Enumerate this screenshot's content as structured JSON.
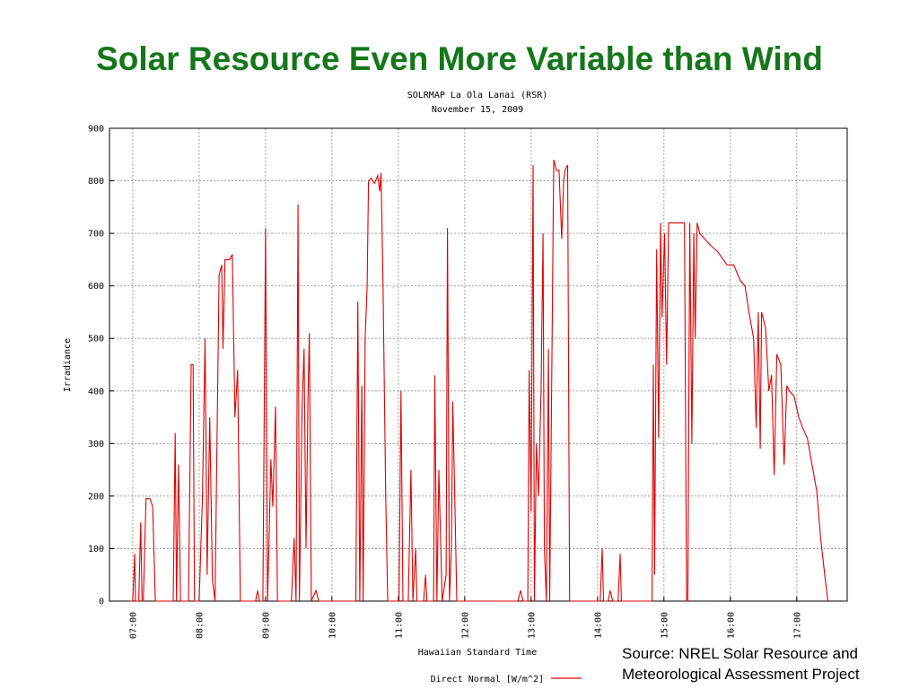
{
  "slide": {
    "title": "Solar Resource Even More Variable than Wind",
    "source": [
      "Source: NREL Solar Resource and",
      "Meteorological Assessment Project"
    ]
  },
  "chart_data": {
    "type": "line",
    "title": "SOLRMAP La Ola Lanai (RSR)",
    "subtitle": "November 15, 2009",
    "x_label": "Hawaiian Standard Time",
    "y_label": "Irradiance",
    "xlim": [
      6.65,
      17.76
    ],
    "xticks": [
      {
        "value": 7,
        "label": "07:00"
      },
      {
        "value": 8,
        "label": "08:00"
      },
      {
        "value": 9,
        "label": "09:00"
      },
      {
        "value": 10,
        "label": "10:00"
      },
      {
        "value": 11,
        "label": "11:00"
      },
      {
        "value": 12,
        "label": "12:00"
      },
      {
        "value": 13,
        "label": "13:00"
      },
      {
        "value": 14,
        "label": "14:00"
      },
      {
        "value": 15,
        "label": "15:00"
      },
      {
        "value": 16,
        "label": "16:00"
      },
      {
        "value": 17,
        "label": "17:00"
      }
    ],
    "ylim": [
      0,
      900
    ],
    "yticks": [
      0,
      100,
      200,
      300,
      400,
      500,
      600,
      700,
      800,
      900
    ],
    "grid": true,
    "legend": "bottom",
    "x": [
      6.96,
      7.0,
      7.03,
      7.04,
      7.09,
      7.12,
      7.14,
      7.16,
      7.2,
      7.26,
      7.3,
      7.34,
      7.61,
      7.64,
      7.66,
      7.69,
      7.72,
      7.84,
      7.88,
      7.91,
      7.93,
      8.0,
      8.05,
      8.09,
      8.12,
      8.16,
      8.2,
      8.24,
      8.3,
      8.34,
      8.36,
      8.39,
      8.46,
      8.5,
      8.54,
      8.58,
      8.62,
      8.85,
      8.88,
      8.91,
      8.96,
      9.0,
      9.03,
      9.05,
      9.08,
      9.11,
      9.15,
      9.18,
      9.39,
      9.43,
      9.46,
      9.49,
      9.51,
      9.55,
      9.58,
      9.61,
      9.64,
      9.66,
      9.69,
      9.76,
      9.8,
      10.36,
      10.39,
      10.42,
      10.45,
      10.47,
      10.5,
      10.53,
      10.55,
      10.59,
      10.64,
      10.69,
      10.72,
      10.74,
      10.77,
      10.81,
      10.84,
      11.01,
      11.04,
      11.07,
      11.15,
      11.19,
      11.22,
      11.26,
      11.28,
      11.38,
      11.41,
      11.43,
      11.53,
      11.55,
      11.58,
      11.61,
      11.64,
      11.66,
      11.72,
      11.74,
      11.77,
      11.8,
      11.82,
      11.85,
      11.88,
      12.8,
      12.84,
      12.88,
      12.95,
      12.97,
      13.0,
      13.03,
      13.05,
      13.08,
      13.11,
      13.15,
      13.18,
      13.2,
      13.23,
      13.26,
      13.28,
      13.34,
      13.38,
      13.42,
      13.46,
      13.49,
      13.51,
      13.55,
      13.58,
      14.04,
      14.07,
      14.09,
      14.16,
      14.19,
      14.23,
      14.31,
      14.34,
      14.36,
      14.82,
      14.84,
      14.86,
      14.89,
      14.92,
      14.95,
      14.97,
      15.01,
      15.04,
      15.07,
      15.27,
      15.31,
      15.34,
      15.36,
      15.39,
      15.42,
      15.45,
      15.47,
      15.5,
      15.54,
      15.68,
      15.81,
      15.95,
      16.05,
      16.15,
      16.22,
      16.28,
      16.35,
      16.39,
      16.42,
      16.45,
      16.47,
      16.53,
      16.58,
      16.62,
      16.66,
      16.7,
      16.76,
      16.81,
      16.85,
      16.89,
      16.96,
      17.03,
      17.09,
      17.16,
      17.23,
      17.3,
      17.36,
      17.43,
      17.47
    ],
    "series": [
      {
        "name": "Direct Normal [W/m^2]",
        "color": "#e00000",
        "values": [
          0,
          0,
          90,
          0,
          0,
          150,
          0,
          0,
          195,
          195,
          180,
          0,
          0,
          320,
          0,
          260,
          0,
          0,
          450,
          450,
          0,
          0,
          200,
          500,
          50,
          350,
          40,
          0,
          620,
          640,
          480,
          650,
          650,
          660,
          350,
          440,
          0,
          0,
          20,
          0,
          0,
          710,
          0,
          100,
          270,
          180,
          370,
          0,
          0,
          120,
          0,
          755,
          0,
          370,
          480,
          100,
          390,
          510,
          0,
          20,
          0,
          0,
          570,
          0,
          410,
          0,
          500,
          600,
          800,
          805,
          795,
          810,
          780,
          815,
          600,
          200,
          0,
          0,
          400,
          0,
          0,
          250,
          0,
          100,
          0,
          0,
          50,
          0,
          0,
          430,
          0,
          250,
          100,
          0,
          50,
          710,
          0,
          100,
          380,
          200,
          0,
          0,
          20,
          0,
          0,
          440,
          170,
          830,
          0,
          300,
          200,
          400,
          700,
          100,
          0,
          480,
          0,
          840,
          820,
          820,
          690,
          800,
          820,
          830,
          0,
          0,
          100,
          0,
          0,
          20,
          0,
          0,
          90,
          0,
          0,
          450,
          50,
          670,
          310,
          720,
          540,
          700,
          450,
          720,
          720,
          720,
          0,
          0,
          720,
          300,
          700,
          500,
          720,
          700,
          680,
          665,
          640,
          640,
          610,
          600,
          550,
          500,
          330,
          550,
          290,
          550,
          520,
          400,
          430,
          240,
          470,
          450,
          260,
          410,
          400,
          390,
          350,
          330,
          310,
          260,
          210,
          120,
          40,
          0
        ]
      }
    ]
  }
}
